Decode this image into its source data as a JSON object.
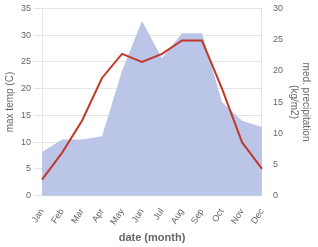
{
  "chart_data": {
    "type": "line",
    "categories": [
      "Jan",
      "Feb",
      "Mar",
      "Apr",
      "May",
      "Jun",
      "Jul",
      "Aug",
      "Sep",
      "Oct",
      "Nov",
      "Dec"
    ],
    "xlabel": "date (month)",
    "ylabel": "max temp (C)",
    "y2label": "med. precipitation\n(kg/m2)",
    "series": [
      {
        "type": "area",
        "axis": "y2",
        "color": "#bbc5e8",
        "values": [
          7.0,
          9.0,
          9.0,
          9.5,
          20.0,
          28.0,
          22.0,
          26.0,
          26.0,
          15.0,
          12.0,
          11.0
        ]
      },
      {
        "type": "line",
        "color": "#c0392b",
        "values": [
          3.0,
          8.0,
          14.0,
          22.0,
          26.5,
          25.0,
          26.5,
          29.0,
          29.0,
          20.0,
          10.0,
          5.0
        ]
      }
    ],
    "ylim": [
      0,
      35
    ],
    "yticks": [
      0,
      5,
      10,
      15,
      20,
      25,
      30,
      35
    ],
    "y2lim": [
      0,
      30
    ],
    "y2ticks": [
      0,
      5,
      10,
      15,
      20,
      25,
      30
    ],
    "grid": true
  }
}
